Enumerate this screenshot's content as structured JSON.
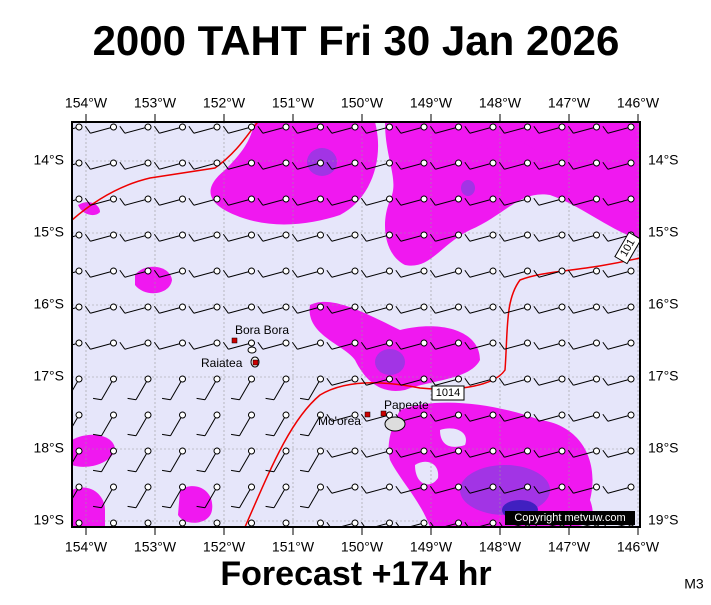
{
  "header": {
    "title": "2000 TAHT Fri 30 Jan 2026"
  },
  "footer": {
    "forecast": "Forecast +174 hr",
    "code": "M3"
  },
  "map": {
    "lon_labels": [
      "154°W",
      "153°W",
      "152°W",
      "151°W",
      "150°W",
      "149°W",
      "148°W",
      "147°W",
      "146°W"
    ],
    "lat_labels": [
      "14°S",
      "15°S",
      "16°S",
      "17°S",
      "18°S",
      "19°S"
    ],
    "places": [
      "Bora Bora",
      "Raiatea",
      "Mo'orea",
      "Papeete"
    ],
    "isobar_labels": [
      "1014",
      "101"
    ],
    "copyright": "Copyright metvuw.com"
  }
}
